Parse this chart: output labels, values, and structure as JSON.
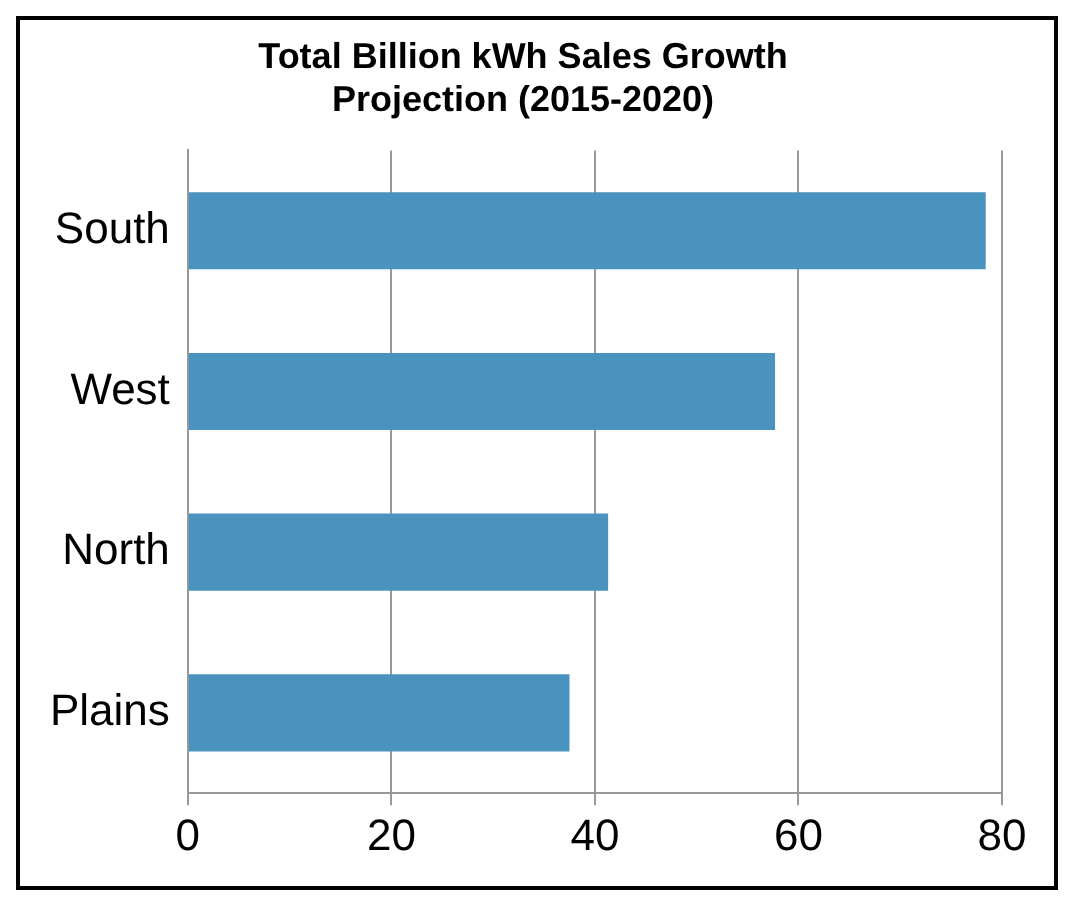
{
  "chart_data": {
    "type": "bar",
    "orientation": "horizontal",
    "title": "Total Billion kWh Sales Growth Projection (2015-2020)",
    "categories": [
      "South",
      "West",
      "North",
      "Plains"
    ],
    "values": [
      78.4,
      57.7,
      41.3,
      37.5
    ],
    "color": "#4a93bf",
    "xlim": [
      0,
      80
    ],
    "xticks": [
      0,
      20,
      40,
      60,
      80
    ],
    "grid": "x",
    "legend": false
  }
}
